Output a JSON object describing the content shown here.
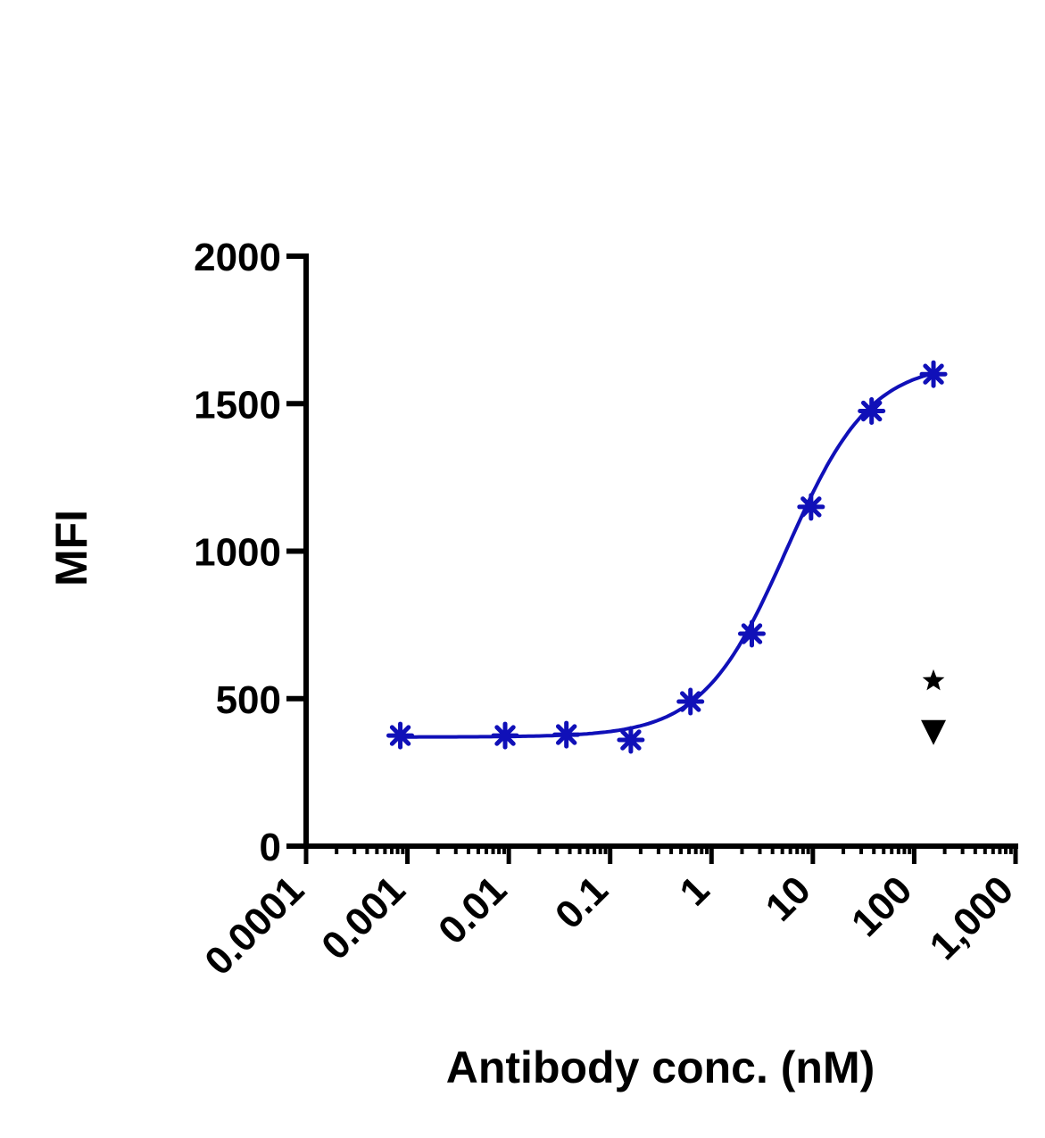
{
  "chart_data": {
    "type": "scatter",
    "title": "",
    "xlabel": "Antibody conc. (nM)",
    "ylabel": "MFI",
    "x_scale": "log",
    "xlim": [
      0.0001,
      1000
    ],
    "ylim": [
      0,
      2000
    ],
    "x_tick_labels": [
      "0.0001",
      "0.001",
      "0.01",
      "0.1",
      "1",
      "10",
      "100",
      "1,000"
    ],
    "y_tick_labels": [
      "0",
      "500",
      "1000",
      "1500",
      "2000"
    ],
    "grid": false,
    "legend": "none",
    "series": [
      {
        "marker": "asterisk",
        "color": "#1010b8",
        "x": [
          0.00085,
          0.0092,
          0.037,
          0.16,
          0.62,
          2.5,
          9.6,
          38,
          155
        ],
        "y": [
          375,
          375,
          378,
          360,
          490,
          720,
          1150,
          1475,
          1600
        ],
        "fit": "sigmoidal"
      },
      {
        "marker": "star",
        "color": "#000000",
        "x": [
          155
        ],
        "y": [
          560
        ]
      },
      {
        "marker": "triangle-down",
        "color": "#000000",
        "x": [
          155
        ],
        "y": [
          385
        ]
      }
    ]
  }
}
